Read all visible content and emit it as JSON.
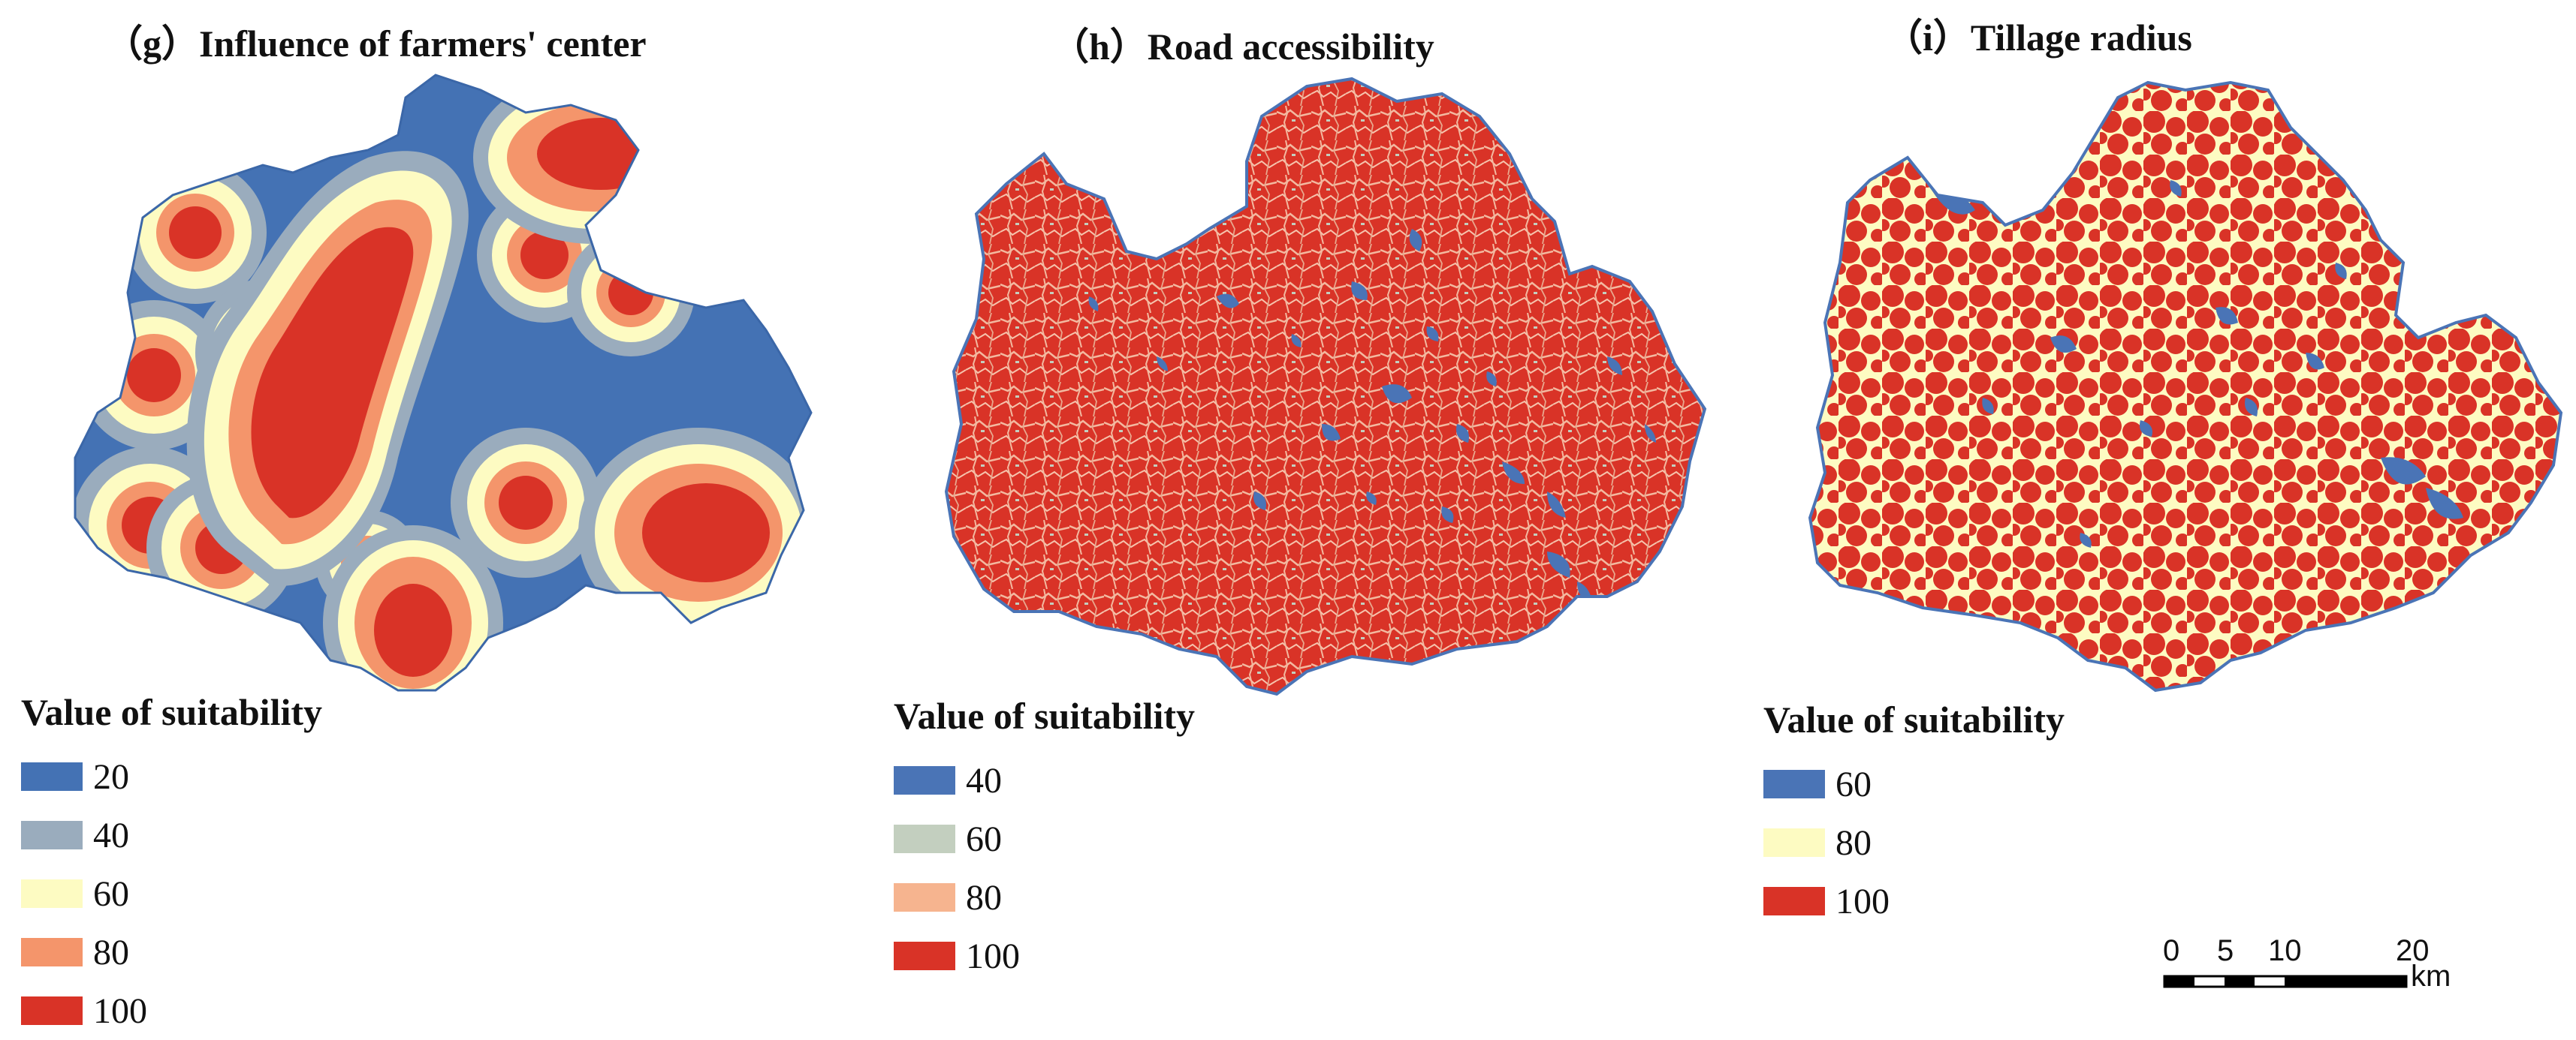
{
  "colors": {
    "v20": "#4472b4",
    "v40_g": "#9aacbd",
    "v40_h": "#4a74b6",
    "v60_g": "#fdfbc2",
    "v60_h": "#c3cfbf",
    "v60_i": "#4a74b6",
    "v80_g": "#f4956b",
    "v80_h": "#f6b48f",
    "v80_i": "#fdfbc2",
    "v100": "#d93327"
  },
  "panels": [
    {
      "title": "（g）Influence of farmers' center",
      "legend_title": "Value of suitability",
      "legend": [
        {
          "label": "20",
          "color": "#4472b4"
        },
        {
          "label": "40",
          "color": "#9aacbd"
        },
        {
          "label": "60",
          "color": "#fdfbc2"
        },
        {
          "label": "80",
          "color": "#f4956b"
        },
        {
          "label": "100",
          "color": "#d93327"
        }
      ]
    },
    {
      "title": "（h）Road accessibility",
      "legend_title": "Value of suitability",
      "legend": [
        {
          "label": "40",
          "color": "#4a74b6"
        },
        {
          "label": "60",
          "color": "#c3cfbf"
        },
        {
          "label": "80",
          "color": "#f6b48f"
        },
        {
          "label": "100",
          "color": "#d93327"
        }
      ]
    },
    {
      "title": "（i）Tillage radius",
      "legend_title": "Value of suitability",
      "legend": [
        {
          "label": "60",
          "color": "#4a74b6"
        },
        {
          "label": "80",
          "color": "#fdfbc2"
        },
        {
          "label": "100",
          "color": "#d93327"
        }
      ]
    }
  ],
  "scalebar": {
    "ticks": [
      "0",
      "5",
      "10",
      "20"
    ],
    "unit": "km"
  }
}
